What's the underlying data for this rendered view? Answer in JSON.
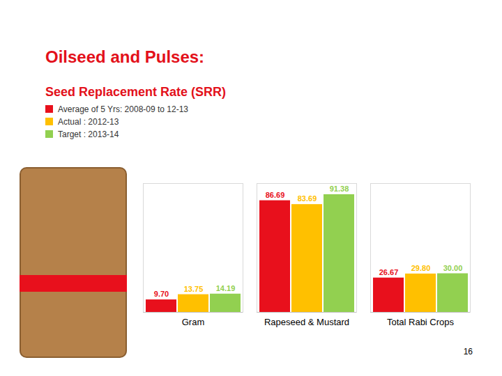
{
  "chart_data": {
    "type": "bar",
    "title": "Oilseed and Pulses:",
    "subtitle": "Seed Replacement Rate (SRR)",
    "categories": [
      "Gram",
      "Rapeseed & Mustard",
      "Total Rabi Crops"
    ],
    "series": [
      {
        "name": "Average of 5 Yrs: 2008-09 to 12-13",
        "color": "#e8101c",
        "values": [
          9.7,
          86.69,
          26.67
        ],
        "value_labels": [
          "9.70",
          "86.69",
          "26.67"
        ]
      },
      {
        "name": "Actual : 2012-13",
        "color": "#ffc000",
        "values": [
          13.75,
          83.69,
          29.8
        ],
        "value_labels": [
          "13.75",
          "83.69",
          "29.80"
        ]
      },
      {
        "name": "Target : 2013-14",
        "color": "#92d050",
        "values": [
          14.19,
          91.38,
          30
        ],
        "value_labels": [
          "14.19",
          "91.38",
          "30.00"
        ]
      }
    ],
    "ylim": [
      0,
      100
    ],
    "yticks": [],
    "grid": false,
    "legend": "top-left",
    "data_labels": true,
    "tick_labels": "x"
  },
  "page_number": "16"
}
